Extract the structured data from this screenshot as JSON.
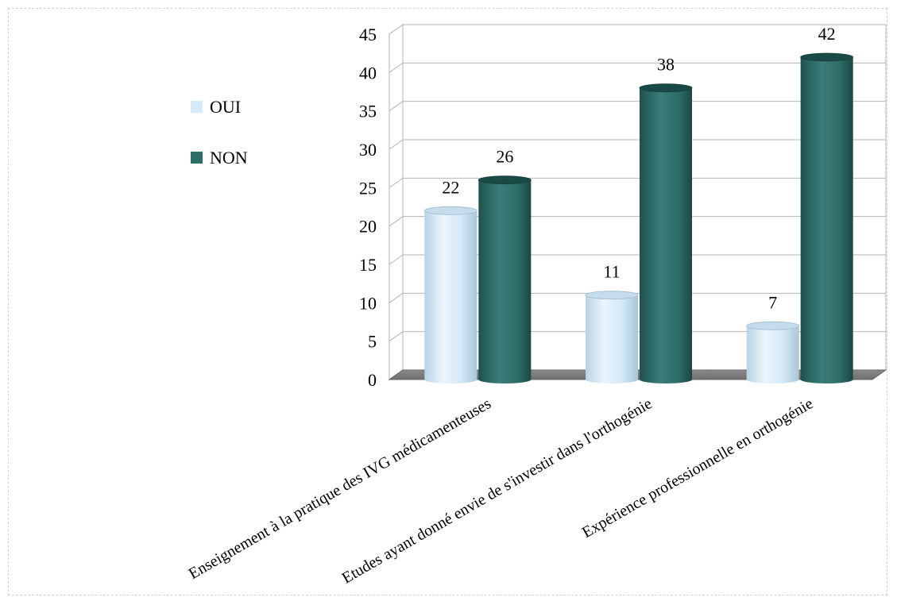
{
  "chart_data": {
    "type": "bar",
    "style": "3d-cylinder",
    "categories": [
      "Enseignement à la pratique des IVG médicamenteuses",
      "Etudes ayant donné envie de s'investir dans l'orthogénie",
      "Expérience professionnelle en orthogénie"
    ],
    "series": [
      {
        "name": "OUI",
        "values": [
          22,
          11,
          7
        ],
        "color": "#d6eaf7"
      },
      {
        "name": "NON",
        "values": [
          26,
          38,
          42
        ],
        "color": "#2e6e6a"
      }
    ],
    "ylim": [
      0,
      45
    ],
    "yticks": [
      "0",
      "5",
      "10",
      "15",
      "20",
      "25",
      "30",
      "35",
      "40",
      "45"
    ],
    "grid": true,
    "legend_position": "left"
  }
}
